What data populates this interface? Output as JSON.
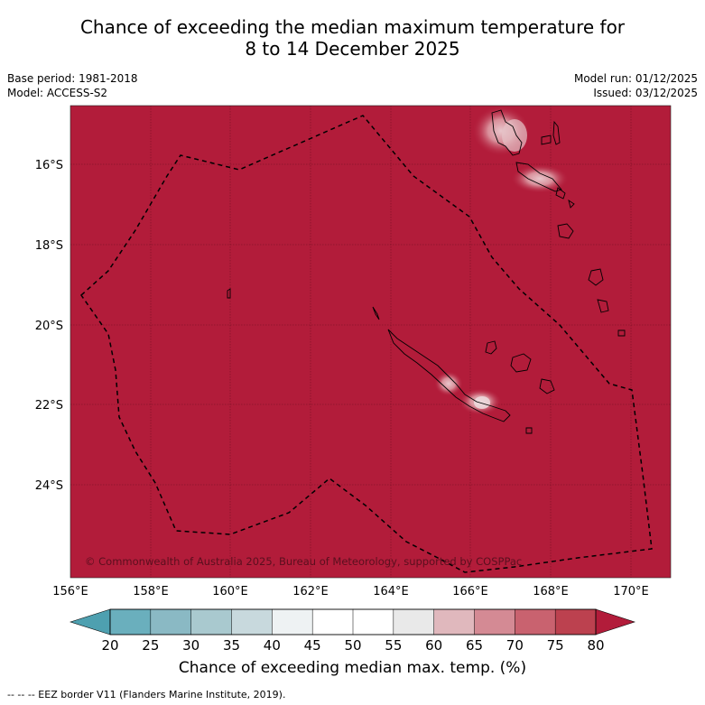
{
  "title": {
    "line1": "Chance of exceeding the median maximum temperature for",
    "line2": "8 to 14 December 2025"
  },
  "meta_left": {
    "base_period": "Base period: 1981-2018",
    "model": "Model: ACCESS-S2"
  },
  "meta_right": {
    "model_run": "Model run: 01/12/2025",
    "issued": "Issued: 03/12/2025"
  },
  "map": {
    "lat_ticks": [
      "16°S",
      "18°S",
      "20°S",
      "22°S",
      "24°S"
    ],
    "lon_ticks": [
      "156°E",
      "158°E",
      "160°E",
      "162°E",
      "164°E",
      "166°E",
      "168°E",
      "170°E"
    ],
    "copyright": "© Commonwealth of Australia 2025, Bureau of Meteorology, supported by COSPPac",
    "base_color": "#b21c3a"
  },
  "colorbar": {
    "tick_labels": [
      "20",
      "25",
      "30",
      "35",
      "40",
      "45",
      "50",
      "55",
      "60",
      "65",
      "70",
      "75",
      "80"
    ],
    "colors": [
      "#4ea0b0",
      "#6aafbd",
      "#8ab9c4",
      "#a9c9cf",
      "#c8d9dd",
      "#eef2f3",
      "#ffffff",
      "#ffffff",
      "#e9e9e9",
      "#e0b8bd",
      "#d48a94",
      "#c9626f",
      "#bc414f",
      "#b21c3a"
    ],
    "label": "Chance of exceeding median max. temp. (%)"
  },
  "footnote": "--  --  -- EEZ border V11 (Flanders Marine Institute, 2019)."
}
